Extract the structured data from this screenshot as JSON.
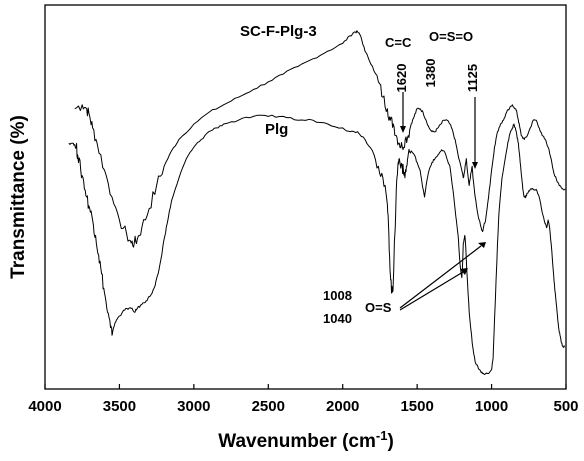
{
  "chart_data": {
    "type": "line",
    "title": "",
    "xlabel": "Wavenumber (cm",
    "xlabel_sup": "-1",
    "xlabel_close": ")",
    "ylabel": "Transmittance (%)",
    "xlim": [
      4000,
      500
    ],
    "x_reversed": true,
    "ylim": [
      0,
      100
    ],
    "y_ticks_shown": false,
    "xticks": [
      4000,
      3500,
      3000,
      2500,
      2000,
      1500,
      1000,
      500
    ],
    "grid": false,
    "legend": "none",
    "series": [
      {
        "name": "SC-F-Plg-3",
        "color": "#000000",
        "points": [
          [
            3800,
            73
          ],
          [
            3750,
            74
          ],
          [
            3720,
            73
          ],
          [
            3700,
            71
          ],
          [
            3680,
            68
          ],
          [
            3650,
            64
          ],
          [
            3600,
            57
          ],
          [
            3550,
            50
          ],
          [
            3500,
            44
          ],
          [
            3450,
            40
          ],
          [
            3420,
            38
          ],
          [
            3400,
            38
          ],
          [
            3380,
            39
          ],
          [
            3350,
            42
          ],
          [
            3300,
            47
          ],
          [
            3250,
            53
          ],
          [
            3200,
            58
          ],
          [
            3150,
            62
          ],
          [
            3100,
            65
          ],
          [
            3000,
            69
          ],
          [
            2900,
            72
          ],
          [
            2800,
            74
          ],
          [
            2700,
            76
          ],
          [
            2600,
            78
          ],
          [
            2500,
            80
          ],
          [
            2400,
            82
          ],
          [
            2300,
            84
          ],
          [
            2200,
            86
          ],
          [
            2100,
            88
          ],
          [
            2000,
            90
          ],
          [
            1950,
            92
          ],
          [
            1920,
            93
          ],
          [
            1900,
            93
          ],
          [
            1880,
            92
          ],
          [
            1850,
            88
          ],
          [
            1800,
            84
          ],
          [
            1760,
            80
          ],
          [
            1730,
            76
          ],
          [
            1700,
            73
          ],
          [
            1680,
            70
          ],
          [
            1660,
            69
          ],
          [
            1640,
            66
          ],
          [
            1620,
            64
          ],
          [
            1600,
            63
          ],
          [
            1580,
            65
          ],
          [
            1560,
            66
          ],
          [
            1540,
            69
          ],
          [
            1520,
            71
          ],
          [
            1500,
            73
          ],
          [
            1480,
            73
          ],
          [
            1460,
            72
          ],
          [
            1440,
            70
          ],
          [
            1420,
            68
          ],
          [
            1400,
            67
          ],
          [
            1380,
            67
          ],
          [
            1360,
            68
          ],
          [
            1340,
            69
          ],
          [
            1320,
            70
          ],
          [
            1300,
            70
          ],
          [
            1280,
            69
          ],
          [
            1260,
            67
          ],
          [
            1240,
            64
          ],
          [
            1220,
            60
          ],
          [
            1200,
            57
          ],
          [
            1190,
            55
          ],
          [
            1180,
            57
          ],
          [
            1170,
            60
          ],
          [
            1160,
            56
          ],
          [
            1150,
            53
          ],
          [
            1140,
            56
          ],
          [
            1130,
            58
          ],
          [
            1125,
            55
          ],
          [
            1110,
            50
          ],
          [
            1090,
            45
          ],
          [
            1070,
            42
          ],
          [
            1060,
            41
          ],
          [
            1050,
            43
          ],
          [
            1040,
            44
          ],
          [
            1020,
            50
          ],
          [
            1000,
            57
          ],
          [
            980,
            63
          ],
          [
            960,
            67
          ],
          [
            940,
            69
          ],
          [
            920,
            70
          ],
          [
            900,
            72
          ],
          [
            880,
            73
          ],
          [
            860,
            74
          ],
          [
            840,
            73
          ],
          [
            830,
            72
          ],
          [
            820,
            70
          ],
          [
            810,
            68
          ],
          [
            800,
            66
          ],
          [
            780,
            65
          ],
          [
            760,
            66
          ],
          [
            740,
            68
          ],
          [
            720,
            70
          ],
          [
            700,
            70
          ],
          [
            680,
            68
          ],
          [
            660,
            66
          ],
          [
            640,
            65
          ],
          [
            620,
            63
          ],
          [
            600,
            60
          ],
          [
            580,
            56
          ],
          [
            560,
            54
          ],
          [
            540,
            53
          ],
          [
            520,
            52
          ],
          [
            505,
            52
          ]
        ]
      },
      {
        "name": "Plg",
        "color": "#000000",
        "points": [
          [
            3840,
            64
          ],
          [
            3810,
            64
          ],
          [
            3790,
            63
          ],
          [
            3780,
            61
          ],
          [
            3760,
            57
          ],
          [
            3740,
            54
          ],
          [
            3720,
            50
          ],
          [
            3700,
            47
          ],
          [
            3680,
            44
          ],
          [
            3660,
            40
          ],
          [
            3640,
            35
          ],
          [
            3620,
            30
          ],
          [
            3600,
            25
          ],
          [
            3580,
            20
          ],
          [
            3560,
            16
          ],
          [
            3550,
            14
          ],
          [
            3540,
            16
          ],
          [
            3520,
            18
          ],
          [
            3500,
            19
          ],
          [
            3480,
            20
          ],
          [
            3450,
            21
          ],
          [
            3420,
            21
          ],
          [
            3400,
            20
          ],
          [
            3380,
            21
          ],
          [
            3350,
            22
          ],
          [
            3320,
            23
          ],
          [
            3300,
            24
          ],
          [
            3280,
            25
          ],
          [
            3260,
            27
          ],
          [
            3240,
            30
          ],
          [
            3220,
            34
          ],
          [
            3200,
            39
          ],
          [
            3180,
            43
          ],
          [
            3150,
            49
          ],
          [
            3100,
            55
          ],
          [
            3050,
            60
          ],
          [
            3000,
            63
          ],
          [
            2950,
            65
          ],
          [
            2900,
            67
          ],
          [
            2850,
            68
          ],
          [
            2800,
            69
          ],
          [
            2700,
            70
          ],
          [
            2600,
            71
          ],
          [
            2500,
            71
          ],
          [
            2400,
            71
          ],
          [
            2300,
            70
          ],
          [
            2200,
            70
          ],
          [
            2100,
            69
          ],
          [
            2000,
            68
          ],
          [
            1950,
            67
          ],
          [
            1900,
            67
          ],
          [
            1850,
            65
          ],
          [
            1800,
            62
          ],
          [
            1760,
            58
          ],
          [
            1730,
            55
          ],
          [
            1700,
            48
          ],
          [
            1690,
            40
          ],
          [
            1680,
            30
          ],
          [
            1670,
            25
          ],
          [
            1665,
            26
          ],
          [
            1660,
            28
          ],
          [
            1650,
            40
          ],
          [
            1640,
            52
          ],
          [
            1630,
            58
          ],
          [
            1620,
            60
          ],
          [
            1600,
            58
          ],
          [
            1590,
            56
          ],
          [
            1580,
            56
          ],
          [
            1570,
            58
          ],
          [
            1560,
            61
          ],
          [
            1540,
            62
          ],
          [
            1520,
            61
          ],
          [
            1500,
            59
          ],
          [
            1480,
            57
          ],
          [
            1460,
            52
          ],
          [
            1450,
            50
          ],
          [
            1440,
            53
          ],
          [
            1420,
            57
          ],
          [
            1400,
            59
          ],
          [
            1380,
            60
          ],
          [
            1360,
            61
          ],
          [
            1340,
            62
          ],
          [
            1320,
            62
          ],
          [
            1300,
            60
          ],
          [
            1280,
            58
          ],
          [
            1260,
            52
          ],
          [
            1240,
            45
          ],
          [
            1225,
            40
          ],
          [
            1215,
            34
          ],
          [
            1205,
            30
          ],
          [
            1200,
            29
          ],
          [
            1195,
            32
          ],
          [
            1190,
            38
          ],
          [
            1180,
            40
          ],
          [
            1175,
            38
          ],
          [
            1165,
            30
          ],
          [
            1150,
            20
          ],
          [
            1130,
            12
          ],
          [
            1110,
            7
          ],
          [
            1080,
            5
          ],
          [
            1060,
            4
          ],
          [
            1040,
            4
          ],
          [
            1020,
            4
          ],
          [
            1000,
            5
          ],
          [
            990,
            8
          ],
          [
            980,
            18
          ],
          [
            970,
            28
          ],
          [
            960,
            38
          ],
          [
            950,
            46
          ],
          [
            930,
            55
          ],
          [
            900,
            62
          ],
          [
            880,
            66
          ],
          [
            860,
            68
          ],
          [
            850,
            69
          ],
          [
            840,
            68
          ],
          [
            830,
            66
          ],
          [
            820,
            64
          ],
          [
            810,
            60
          ],
          [
            800,
            56
          ],
          [
            790,
            52
          ],
          [
            780,
            50
          ],
          [
            770,
            50
          ],
          [
            760,
            51
          ],
          [
            740,
            52
          ],
          [
            720,
            52
          ],
          [
            700,
            52
          ],
          [
            680,
            50
          ],
          [
            660,
            46
          ],
          [
            640,
            43
          ],
          [
            630,
            42
          ],
          [
            620,
            44
          ],
          [
            610,
            42
          ],
          [
            600,
            38
          ],
          [
            590,
            33
          ],
          [
            580,
            28
          ],
          [
            570,
            24
          ],
          [
            560,
            20
          ],
          [
            550,
            16
          ],
          [
            540,
            14
          ],
          [
            530,
            12
          ],
          [
            520,
            11
          ],
          [
            510,
            11
          ]
        ]
      }
    ],
    "annotations": {
      "series_label_1": "SC-F-Plg-3",
      "series_label_2": "Plg",
      "cc": "C=C",
      "oso2": "O=S=O",
      "p1620": "1620",
      "p1380": "1380",
      "p1125": "1125",
      "p1008": "1008",
      "p1040": "1040",
      "os": "O=S"
    }
  }
}
